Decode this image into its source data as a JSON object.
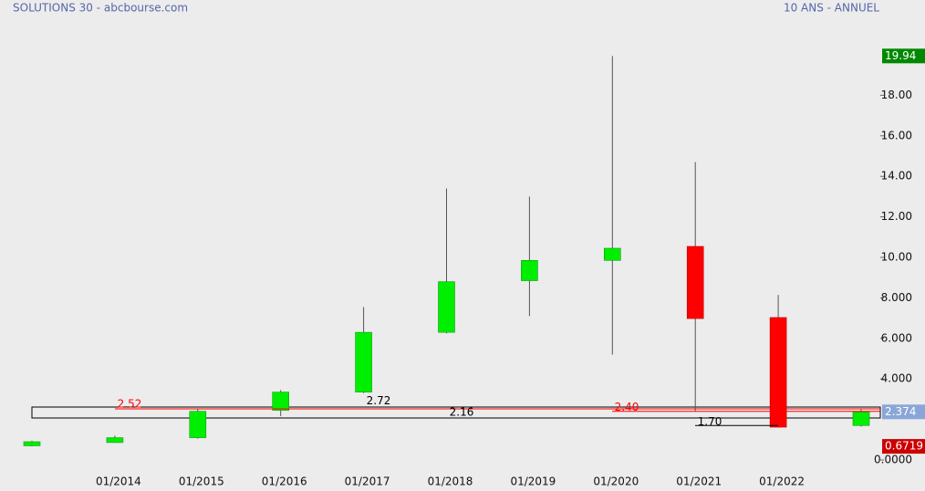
{
  "chart_data": {
    "type": "candlestick",
    "title": "SOLUTIONS 30 - abcbourse.com",
    "subtitle": "10 ANS - ANNUEL",
    "categories": [
      null,
      "01/2014",
      "01/2015",
      "01/2016",
      "01/2017",
      "01/2018",
      "01/2019",
      "01/2020",
      "01/2021",
      "01/2022",
      null
    ],
    "open": [
      0.7,
      0.86,
      1.1,
      2.45,
      3.35,
      6.3,
      8.85,
      9.85,
      10.54,
      7.03,
      1.7
    ],
    "high": [
      0.95,
      1.2,
      2.52,
      3.45,
      7.55,
      13.4,
      13.0,
      19.94,
      14.7,
      8.15,
      2.5
    ],
    "low": [
      0.6719,
      0.85,
      1.05,
      2.16,
      3.3,
      6.25,
      7.1,
      5.2,
      2.4,
      1.6,
      1.65
    ],
    "close": [
      0.9,
      1.1,
      2.4,
      3.35,
      6.3,
      8.8,
      9.85,
      10.45,
      6.98,
      1.62,
      2.374
    ],
    "up_color": "#00ee00",
    "down_color": "#ff0000",
    "ylim": [
      0,
      20
    ],
    "yticks": [
      {
        "value": 0,
        "label": "0.0000"
      },
      {
        "value": 4,
        "label": "4.000"
      },
      {
        "value": 6,
        "label": "6.000"
      },
      {
        "value": 8,
        "label": "8.000"
      },
      {
        "value": 10,
        "label": "10.00"
      },
      {
        "value": 12,
        "label": "12.00"
      },
      {
        "value": 14,
        "label": "14.00"
      },
      {
        "value": 16,
        "label": "16.00"
      },
      {
        "value": 18,
        "label": "18.00"
      }
    ],
    "annotations": [
      {
        "value": 2.52,
        "label": "2.52",
        "color": "#ff0000"
      },
      {
        "value": 2.72,
        "label": "2.72",
        "color": "#000000"
      },
      {
        "value": 2.16,
        "label": "2.16",
        "color": "#000000"
      },
      {
        "value": 2.4,
        "label": "2.40",
        "color": "#ff0000"
      },
      {
        "value": 1.7,
        "label": "1.70",
        "color": "#000000"
      }
    ]
  }
}
